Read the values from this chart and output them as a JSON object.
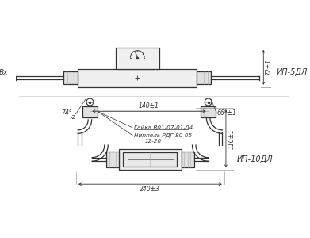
{
  "bg_color": "#ffffff",
  "label_ip5": "ИП-5ДЛ",
  "label_ip10": "ИП-10ДЛ",
  "label_vx": "Вх",
  "dim_72": "72±1",
  "dim_140": "140±1",
  "dim_66": "66°±1",
  "dim_74": "74°",
  "dim_74sub": "-2",
  "dim_110": "110±1",
  "dim_240": "240±3",
  "label_gaika": "Гайка В01-07-01-04",
  "label_nippel": "Ниппель РДГ-80-05-",
  "label_nippel2": "12-20",
  "line_color": "#333333",
  "dim_color": "#333333",
  "light_color": "#dddddd"
}
